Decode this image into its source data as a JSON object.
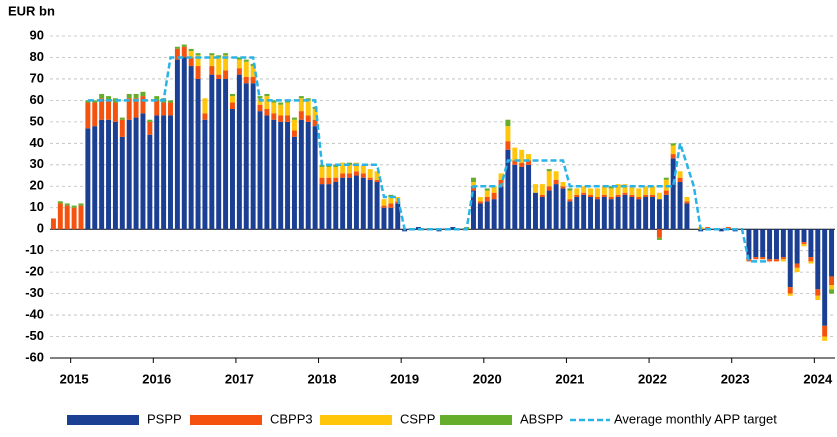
{
  "chart_data": {
    "type": "bar",
    "stacked": true,
    "y_label": "EUR bn",
    "categories": [
      null,
      null,
      null,
      "2015",
      null,
      null,
      null,
      null,
      null,
      null,
      null,
      null,
      null,
      null,
      null,
      "2016",
      null,
      null,
      null,
      null,
      null,
      null,
      null,
      null,
      null,
      null,
      null,
      "2017",
      null,
      null,
      null,
      null,
      null,
      null,
      null,
      null,
      null,
      null,
      null,
      "2018",
      null,
      null,
      null,
      null,
      null,
      null,
      null,
      null,
      null,
      null,
      null,
      "2019",
      null,
      null,
      null,
      null,
      null,
      null,
      null,
      null,
      null,
      null,
      null,
      "2020",
      null,
      null,
      null,
      null,
      null,
      null,
      null,
      null,
      null,
      null,
      null,
      "2021",
      null,
      null,
      null,
      null,
      null,
      null,
      null,
      null,
      null,
      null,
      null,
      "2022",
      null,
      null,
      null,
      null,
      null,
      null,
      null,
      null,
      null,
      null,
      null,
      "2023",
      null,
      null,
      null,
      null,
      null,
      null,
      null,
      null,
      null,
      null,
      null,
      "2024",
      null,
      null
    ],
    "ylim": [
      -60,
      90
    ],
    "yticks": [
      -60,
      -50,
      -40,
      -30,
      -20,
      -10,
      0,
      10,
      20,
      30,
      40,
      50,
      60,
      70,
      80,
      90
    ],
    "grid": true,
    "series": [
      {
        "name": "PSPP",
        "color": "#1b3f93",
        "values": [
          0,
          0,
          0,
          0,
          0,
          47,
          48,
          51,
          51,
          50,
          43,
          51,
          52,
          54,
          44,
          53,
          53,
          53,
          79,
          80,
          76,
          70,
          51,
          72,
          70,
          70,
          56,
          72,
          68,
          68,
          55,
          53,
          51,
          50,
          50,
          43,
          51,
          50,
          48,
          21,
          21,
          22,
          24,
          24,
          25,
          24,
          23,
          22,
          10,
          10,
          12,
          -1,
          0,
          1,
          0,
          0,
          -1,
          0,
          1,
          0,
          0,
          18,
          12,
          13,
          14,
          20,
          37,
          30,
          29,
          30,
          17,
          15,
          18,
          21,
          19,
          13,
          15,
          16,
          15,
          14,
          15,
          14,
          15,
          16,
          15,
          14,
          15,
          15,
          14,
          16,
          33,
          22,
          12,
          0,
          -1,
          0,
          0,
          -1,
          0,
          -1,
          0,
          -14,
          -13,
          -13,
          -14,
          -14,
          -13,
          -27,
          -16,
          -6,
          -13,
          -28,
          -45,
          -22
        ]
      },
      {
        "name": "CBPP3",
        "color": "#f5520f",
        "values": [
          5,
          12,
          11,
          10,
          11,
          12,
          11,
          10,
          9,
          9,
          8,
          10,
          9,
          8,
          6,
          7,
          6,
          6,
          5,
          5,
          4,
          6,
          3,
          4,
          2,
          4,
          3,
          3,
          3,
          3,
          3,
          3,
          3,
          3,
          3,
          3,
          4,
          3,
          3,
          3,
          3,
          2,
          2,
          2,
          2,
          2,
          1,
          1,
          1,
          2,
          1,
          0,
          0,
          0,
          0,
          0,
          0,
          0,
          0,
          0,
          0,
          2,
          1,
          2,
          3,
          3,
          4,
          2,
          2,
          2,
          0,
          1,
          2,
          2,
          1,
          1,
          1,
          1,
          1,
          1,
          1,
          1,
          1,
          1,
          1,
          1,
          1,
          1,
          -4,
          2,
          2,
          2,
          1,
          0,
          0,
          1,
          0,
          0,
          1,
          0,
          0,
          -1,
          -1,
          -1,
          -1,
          -1,
          -1,
          -3,
          -2,
          -1,
          -2,
          -3,
          -5,
          -4
        ]
      },
      {
        "name": "CSPP",
        "color": "#ffc60b",
        "values": [
          0,
          0,
          0,
          0,
          0,
          0,
          0,
          0,
          0,
          0,
          0,
          0,
          0,
          0,
          0,
          0,
          0,
          0,
          0,
          0,
          3,
          5,
          7,
          5,
          8,
          7,
          3,
          4,
          7,
          5,
          3,
          6,
          5,
          5,
          6,
          5,
          6,
          7,
          5,
          5,
          5,
          5,
          5,
          4,
          4,
          4,
          4,
          4,
          3,
          3,
          2,
          0,
          0,
          0,
          0,
          0,
          0,
          0,
          0,
          0,
          0,
          2,
          2,
          3,
          3,
          3,
          7,
          6,
          6,
          3,
          4,
          5,
          7,
          4,
          2,
          4,
          3,
          3,
          3,
          4,
          4,
          4,
          5,
          4,
          4,
          4,
          4,
          4,
          3,
          5,
          4,
          3,
          2,
          0,
          1,
          0,
          0,
          0,
          0,
          0,
          0,
          0,
          0,
          0,
          0,
          0,
          -1,
          -1,
          -2,
          -1,
          -1,
          -2,
          -2,
          -2
        ]
      },
      {
        "name": "ABSPP",
        "color": "#65ad2b",
        "values": [
          0,
          1,
          1,
          1,
          1,
          1,
          1,
          2,
          2,
          2,
          1,
          2,
          2,
          2,
          1,
          2,
          2,
          1,
          1,
          1,
          1,
          1,
          0,
          1,
          1,
          1,
          1,
          1,
          1,
          1,
          1,
          1,
          1,
          1,
          1,
          1,
          1,
          1,
          1,
          1,
          1,
          1,
          0,
          1,
          0,
          0,
          0,
          0,
          0,
          1,
          0,
          0,
          0,
          0,
          0,
          0,
          0,
          0,
          0,
          0,
          1,
          2,
          0,
          1,
          0,
          0,
          3,
          0,
          0,
          0,
          0,
          0,
          1,
          0,
          0,
          1,
          0,
          0,
          0,
          0,
          0,
          1,
          0,
          0,
          0,
          0,
          0,
          0,
          -1,
          1,
          1,
          0,
          0,
          0,
          0,
          0,
          0,
          0,
          0,
          0,
          0,
          0,
          0,
          0,
          0,
          0,
          0,
          0,
          0,
          0,
          0,
          0,
          0,
          -2
        ]
      },
      {
        "name": "Average monthly APP target",
        "color": "#29b3e6",
        "type": "line",
        "dashed": true,
        "values": [
          null,
          null,
          null,
          null,
          null,
          60,
          60,
          60,
          60,
          60,
          60,
          60,
          60,
          60,
          60,
          60,
          60,
          80,
          80,
          80,
          80,
          80,
          80,
          80,
          80,
          80,
          80,
          80,
          80,
          80,
          60,
          60,
          60,
          60,
          60,
          60,
          60,
          60,
          60,
          30,
          30,
          30,
          30,
          30,
          30,
          30,
          30,
          30,
          15,
          15,
          15,
          0,
          0,
          0,
          0,
          0,
          0,
          0,
          0,
          0,
          0,
          20,
          20,
          20,
          20,
          20,
          32,
          32,
          32,
          32,
          32,
          32,
          32,
          32,
          32,
          20,
          20,
          20,
          20,
          20,
          20,
          20,
          20,
          20,
          20,
          20,
          20,
          20,
          20,
          20,
          20,
          40,
          30,
          20,
          0,
          0,
          0,
          0,
          0,
          0,
          0,
          -15,
          -15,
          -15,
          -15,
          null,
          null,
          null,
          null,
          null,
          null,
          null,
          null,
          null
        ]
      }
    ]
  }
}
